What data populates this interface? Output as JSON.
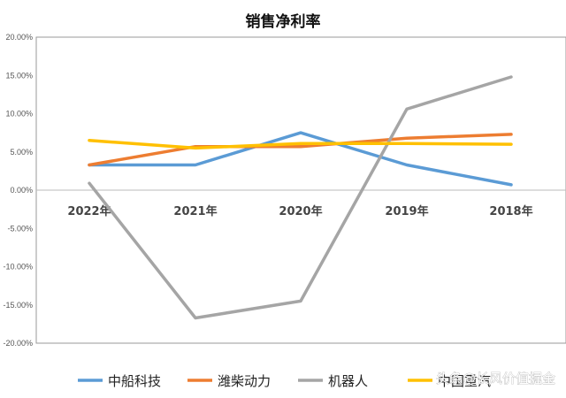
{
  "chart_data": {
    "type": "line",
    "title": "销售净利率",
    "xlabel": "",
    "ylabel": "",
    "categories": [
      "2022年",
      "2021年",
      "2020年",
      "2019年",
      "2018年"
    ],
    "ylim": [
      -0.2,
      0.2
    ],
    "ytick_values": [
      0.2,
      0.15,
      0.1,
      0.05,
      0.0,
      -0.05,
      -0.1,
      -0.15,
      -0.2
    ],
    "ytick_labels": [
      "20.00%",
      "15.00%",
      "10.00%",
      "5.00%",
      "0.00%",
      "-5.00%",
      "-10.00%",
      "-15.00%",
      "-20.00%"
    ],
    "grid": false,
    "legend_position": "bottom",
    "series": [
      {
        "name": "中船科技",
        "color": "#5B9BD5",
        "values": [
          0.033,
          0.033,
          0.075,
          0.033,
          0.007
        ]
      },
      {
        "name": "潍柴动力",
        "color": "#ED7D31",
        "values": [
          0.033,
          0.057,
          0.057,
          0.068,
          0.073
        ]
      },
      {
        "name": "机器人",
        "color": "#A5A5A5",
        "values": [
          0.009,
          -0.167,
          -0.145,
          0.106,
          0.148
        ]
      },
      {
        "name": "中国重汽",
        "color": "#FFC000",
        "values": [
          0.065,
          0.055,
          0.061,
          0.061,
          0.06
        ]
      }
    ]
  },
  "watermark": {
    "text": "头条@长风价值掘金"
  }
}
